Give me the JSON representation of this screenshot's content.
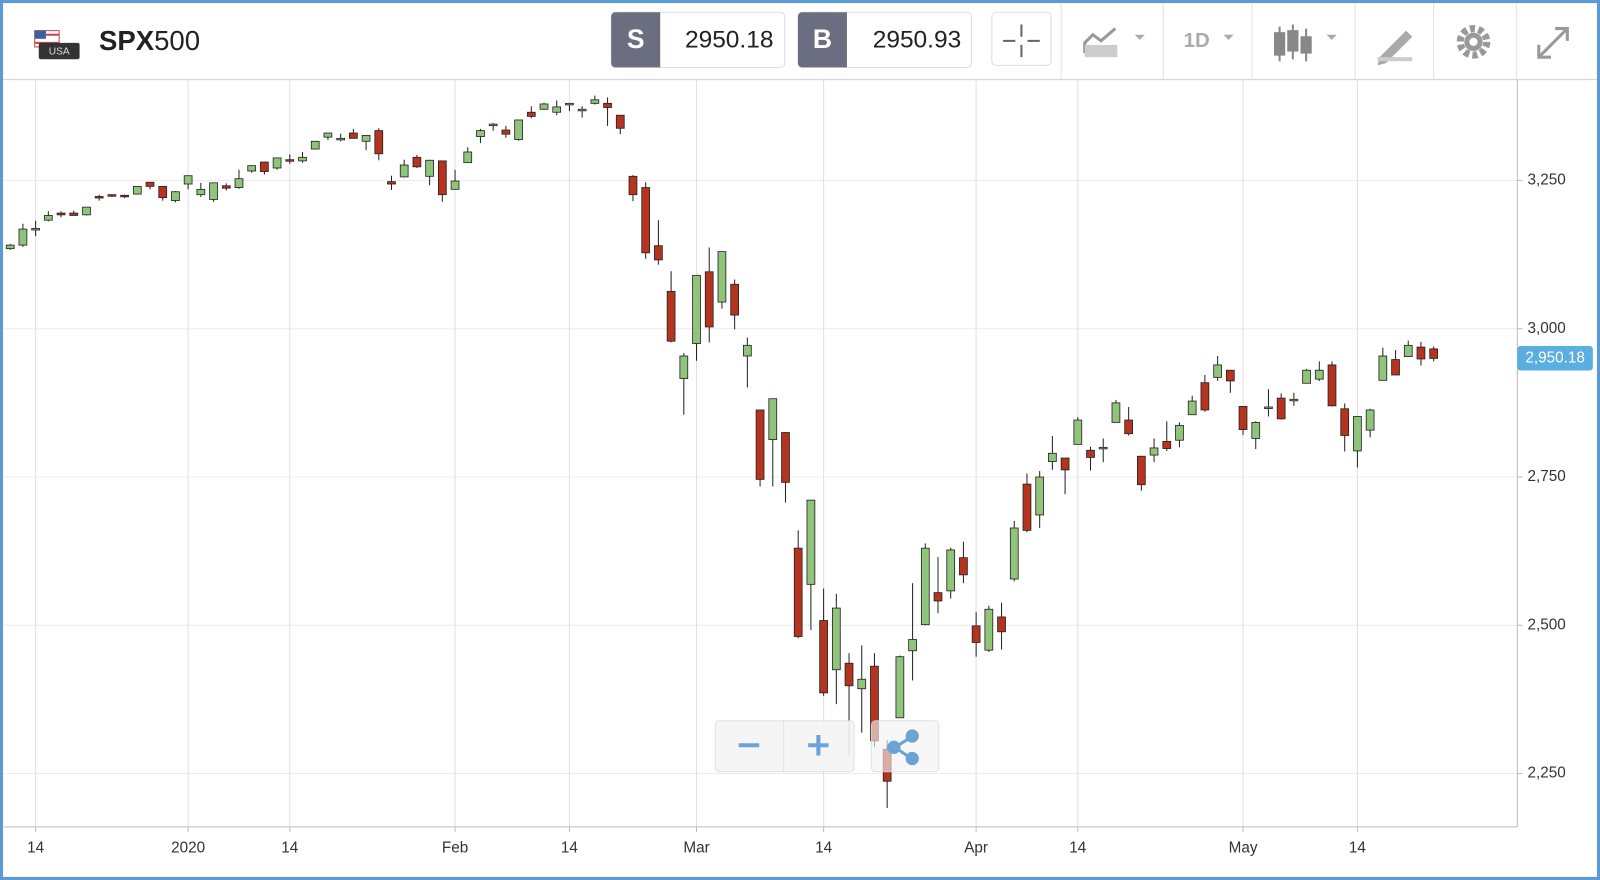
{
  "header": {
    "flag_label": "USA",
    "symbol_bold": "SPX",
    "symbol_rest": "500",
    "sell": {
      "label": "S",
      "price": "2950.18"
    },
    "buy": {
      "label": "B",
      "price": "2950.93"
    },
    "interval": "1D"
  },
  "chart_data": {
    "type": "candlestick",
    "up_color": "#8fc47a",
    "down_color": "#b5341f",
    "grid": true,
    "ylim": [
      2160,
      3420
    ],
    "yticks": [
      {
        "value": 2250,
        "label": "2,250"
      },
      {
        "value": 2500,
        "label": "2,500"
      },
      {
        "value": 2750,
        "label": "2,750"
      },
      {
        "value": 3000,
        "label": "3,000"
      },
      {
        "value": 3250,
        "label": "3,250"
      }
    ],
    "last_price": {
      "value": 2950.18,
      "label": "2,950.18"
    },
    "categories": [
      null,
      null,
      "14",
      null,
      null,
      null,
      null,
      null,
      null,
      null,
      null,
      null,
      null,
      null,
      "2020",
      null,
      null,
      null,
      null,
      null,
      null,
      null,
      "14",
      null,
      null,
      null,
      null,
      null,
      null,
      null,
      null,
      null,
      null,
      null,
      null,
      "Feb",
      null,
      null,
      null,
      null,
      null,
      null,
      null,
      null,
      "14",
      null,
      null,
      null,
      null,
      null,
      null,
      null,
      null,
      null,
      "Mar",
      null,
      null,
      null,
      null,
      null,
      null,
      null,
      null,
      null,
      "14",
      null,
      null,
      null,
      null,
      null,
      null,
      null,
      null,
      null,
      null,
      null,
      "Apr",
      null,
      null,
      null,
      null,
      null,
      null,
      null,
      "14",
      null,
      null,
      null,
      null,
      null,
      null,
      null,
      null,
      null,
      null,
      null,
      null,
      "May",
      null,
      null,
      null,
      null,
      null,
      null,
      null,
      null,
      "14",
      null,
      null,
      null,
      null,
      null,
      null
    ],
    "open": [
      3135,
      3141,
      3167,
      3183,
      3195,
      3195,
      3192,
      3223,
      3226,
      3225,
      3227,
      3247,
      3240,
      3216,
      3244,
      3226,
      3218,
      3241,
      3238,
      3266,
      3281,
      3271,
      3285,
      3283,
      3303,
      3323,
      3321,
      3330,
      3316,
      3334,
      3248,
      3256,
      3289,
      3257,
      3283,
      3235,
      3280,
      3324,
      3344,
      3335,
      3319,
      3365,
      3370,
      3365,
      3378,
      3370,
      3380,
      3380,
      3360,
      3257,
      3238,
      3140,
      3063,
      2916,
      2975,
      3096,
      3045,
      3075,
      2954,
      2863,
      2813,
      2825,
      2630,
      2569,
      2508,
      2425,
      2436,
      2393,
      2431,
      2291,
      2344,
      2457,
      2501,
      2555,
      2558,
      2614,
      2499,
      2458,
      2514,
      2578,
      2738,
      2686,
      2776,
      2782,
      2805,
      2795,
      2799,
      2842,
      2846,
      2785,
      2787,
      2810,
      2812,
      2855,
      2909,
      2918,
      2930,
      2869,
      2815,
      2868,
      2883,
      2879,
      2908,
      2915,
      2939,
      2865,
      2794,
      2829,
      2913,
      2948,
      2953,
      2969,
      2966
    ],
    "high": [
      3143,
      3177,
      3182,
      3198,
      3198,
      3199,
      3205,
      3226,
      3227,
      3226,
      3240,
      3247,
      3240,
      3232,
      3258,
      3246,
      3246,
      3245,
      3268,
      3275,
      3282,
      3288,
      3294,
      3298,
      3316,
      3329,
      3329,
      3337,
      3326,
      3338,
      3258,
      3285,
      3293,
      3285,
      3283,
      3268,
      3306,
      3337,
      3347,
      3342,
      3352,
      3375,
      3381,
      3385,
      3380,
      3375,
      3393,
      3390,
      3360,
      3259,
      3247,
      3183,
      3097,
      2959,
      3090,
      3137,
      3130,
      3083,
      2985,
      2863,
      2882,
      2825,
      2660,
      2711,
      2562,
      2553,
      2453,
      2466,
      2453,
      2306,
      2449,
      2571,
      2638,
      2615,
      2631,
      2641,
      2522,
      2533,
      2538,
      2676,
      2756,
      2760,
      2819,
      2782,
      2851,
      2801,
      2815,
      2880,
      2868,
      2785,
      2815,
      2844,
      2842,
      2887,
      2922,
      2954,
      2930,
      2869,
      2844,
      2898,
      2891,
      2892,
      2932,
      2945,
      2945,
      2874,
      2852,
      2865,
      2968,
      2964,
      2980,
      2978,
      2970
    ],
    "low": [
      3133,
      3138,
      3156,
      3181,
      3188,
      3191,
      3191,
      3216,
      3222,
      3220,
      3227,
      3235,
      3216,
      3213,
      3235,
      3222,
      3214,
      3233,
      3236,
      3263,
      3260,
      3268,
      3278,
      3280,
      3302,
      3318,
      3316,
      3321,
      3301,
      3284,
      3234,
      3255,
      3271,
      3242,
      3214,
      3235,
      3280,
      3313,
      3334,
      3322,
      3317,
      3355,
      3369,
      3360,
      3367,
      3356,
      3378,
      3342,
      3328,
      3215,
      3118,
      3108,
      2977,
      2855,
      2946,
      2977,
      3034,
      2999,
      2901,
      2734,
      2734,
      2707,
      2478,
      2492,
      2381,
      2367,
      2280,
      2319,
      2295,
      2192,
      2344,
      2407,
      2500,
      2520,
      2545,
      2571,
      2447,
      2455,
      2459,
      2574,
      2657,
      2664,
      2762,
      2721,
      2805,
      2761,
      2775,
      2842,
      2820,
      2727,
      2775,
      2794,
      2800,
      2855,
      2860,
      2912,
      2892,
      2821,
      2797,
      2852,
      2847,
      2870,
      2908,
      2912,
      2869,
      2793,
      2766,
      2817,
      2913,
      2922,
      2953,
      2938,
      2945
    ],
    "close": [
      3141,
      3168,
      3169,
      3191,
      3192,
      3191,
      3205,
      3221,
      3224,
      3223,
      3240,
      3240,
      3221,
      3231,
      3258,
      3235,
      3246,
      3237,
      3253,
      3275,
      3265,
      3288,
      3283,
      3289,
      3316,
      3330,
      3321,
      3321,
      3326,
      3295,
      3244,
      3276,
      3273,
      3284,
      3226,
      3249,
      3298,
      3334,
      3345,
      3328,
      3352,
      3358,
      3379,
      3374,
      3380,
      3370,
      3386,
      3373,
      3338,
      3226,
      3128,
      3116,
      2979,
      2954,
      3090,
      3003,
      3130,
      3023,
      2972,
      2746,
      2882,
      2741,
      2481,
      2711,
      2386,
      2529,
      2398,
      2409,
      2305,
      2237,
      2447,
      2476,
      2630,
      2541,
      2627,
      2585,
      2471,
      2527,
      2489,
      2664,
      2660,
      2750,
      2790,
      2762,
      2846,
      2783,
      2800,
      2875,
      2823,
      2737,
      2799,
      2798,
      2837,
      2878,
      2863,
      2939,
      2912,
      2830,
      2842,
      2868,
      2848,
      2881,
      2930,
      2930,
      2870,
      2820,
      2852,
      2863,
      2954,
      2922,
      2972,
      2949,
      2950
    ]
  }
}
